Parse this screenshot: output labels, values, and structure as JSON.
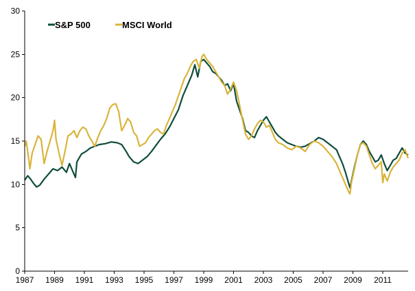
{
  "chart_data": {
    "type": "line",
    "title": "",
    "xlabel": "",
    "ylabel": "",
    "xlim": [
      1987,
      2012.7
    ],
    "ylim": [
      0,
      30
    ],
    "x_ticks": [
      1987,
      1989,
      1991,
      1993,
      1995,
      1997,
      1999,
      2001,
      2003,
      2005,
      2007,
      2009,
      2011
    ],
    "x_tick_labels": [
      "1987",
      "1989",
      "1991",
      "1993",
      "1995",
      "1997",
      "1999",
      "2001",
      "2003",
      "2005",
      "2007",
      "2009",
      "2011"
    ],
    "y_ticks": [
      0,
      5,
      10,
      15,
      20,
      25,
      30
    ],
    "y_tick_labels": [
      "0",
      "5",
      "10",
      "15",
      "20",
      "25",
      "30"
    ],
    "grid": false,
    "legend_position": "top-left",
    "series": [
      {
        "name": "S&P 500",
        "color": "#0d4d3a",
        "points": [
          [
            1987.0,
            10.5
          ],
          [
            1987.2,
            11.0
          ],
          [
            1987.4,
            10.6
          ],
          [
            1987.6,
            10.1
          ],
          [
            1987.8,
            9.7
          ],
          [
            1988.0,
            9.9
          ],
          [
            1988.3,
            10.6
          ],
          [
            1988.6,
            11.2
          ],
          [
            1988.9,
            11.8
          ],
          [
            1989.2,
            11.6
          ],
          [
            1989.5,
            12.0
          ],
          [
            1989.8,
            11.4
          ],
          [
            1990.0,
            12.4
          ],
          [
            1990.2,
            11.6
          ],
          [
            1990.4,
            10.8
          ],
          [
            1990.5,
            12.6
          ],
          [
            1990.8,
            13.5
          ],
          [
            1991.1,
            13.8
          ],
          [
            1991.4,
            14.2
          ],
          [
            1991.7,
            14.4
          ],
          [
            1992.0,
            14.6
          ],
          [
            1992.4,
            14.7
          ],
          [
            1992.8,
            14.9
          ],
          [
            1993.2,
            14.8
          ],
          [
            1993.5,
            14.6
          ],
          [
            1993.8,
            13.8
          ],
          [
            1994.0,
            13.2
          ],
          [
            1994.3,
            12.6
          ],
          [
            1994.6,
            12.4
          ],
          [
            1994.9,
            12.8
          ],
          [
            1995.2,
            13.2
          ],
          [
            1995.5,
            13.8
          ],
          [
            1995.8,
            14.5
          ],
          [
            1996.1,
            15.2
          ],
          [
            1996.4,
            15.8
          ],
          [
            1996.7,
            16.6
          ],
          [
            1997.0,
            17.6
          ],
          [
            1997.3,
            18.6
          ],
          [
            1997.6,
            20.2
          ],
          [
            1997.9,
            21.4
          ],
          [
            1998.2,
            22.6
          ],
          [
            1998.4,
            23.8
          ],
          [
            1998.6,
            22.4
          ],
          [
            1998.8,
            24.2
          ],
          [
            1999.0,
            24.4
          ],
          [
            1999.2,
            24.0
          ],
          [
            1999.4,
            23.6
          ],
          [
            1999.6,
            23.0
          ],
          [
            1999.8,
            22.8
          ],
          [
            2000.0,
            22.4
          ],
          [
            2000.2,
            22.0
          ],
          [
            2000.4,
            21.4
          ],
          [
            2000.6,
            21.6
          ],
          [
            2000.8,
            20.8
          ],
          [
            2001.0,
            21.6
          ],
          [
            2001.2,
            19.6
          ],
          [
            2001.4,
            18.6
          ],
          [
            2001.6,
            17.6
          ],
          [
            2001.8,
            16.2
          ],
          [
            2002.0,
            16.0
          ],
          [
            2002.2,
            15.6
          ],
          [
            2002.4,
            15.4
          ],
          [
            2002.6,
            16.2
          ],
          [
            2002.8,
            16.8
          ],
          [
            2003.0,
            17.4
          ],
          [
            2003.2,
            17.8
          ],
          [
            2003.4,
            17.2
          ],
          [
            2003.6,
            16.6
          ],
          [
            2003.8,
            16.0
          ],
          [
            2004.0,
            15.6
          ],
          [
            2004.3,
            15.2
          ],
          [
            2004.6,
            14.8
          ],
          [
            2004.9,
            14.6
          ],
          [
            2005.2,
            14.4
          ],
          [
            2005.5,
            14.3
          ],
          [
            2005.8,
            14.4
          ],
          [
            2006.1,
            14.7
          ],
          [
            2006.4,
            15.0
          ],
          [
            2006.7,
            15.4
          ],
          [
            2007.0,
            15.2
          ],
          [
            2007.3,
            14.8
          ],
          [
            2007.6,
            14.4
          ],
          [
            2007.9,
            14.0
          ],
          [
            2008.1,
            13.2
          ],
          [
            2008.3,
            12.4
          ],
          [
            2008.5,
            11.4
          ],
          [
            2008.7,
            10.2
          ],
          [
            2008.8,
            9.6
          ],
          [
            2008.9,
            10.4
          ],
          [
            2009.1,
            12.0
          ],
          [
            2009.3,
            13.4
          ],
          [
            2009.5,
            14.6
          ],
          [
            2009.7,
            15.0
          ],
          [
            2009.9,
            14.6
          ],
          [
            2010.1,
            13.8
          ],
          [
            2010.3,
            13.2
          ],
          [
            2010.5,
            12.6
          ],
          [
            2010.7,
            12.8
          ],
          [
            2010.9,
            13.4
          ],
          [
            2011.1,
            12.4
          ],
          [
            2011.3,
            11.6
          ],
          [
            2011.5,
            12.2
          ],
          [
            2011.7,
            12.8
          ],
          [
            2011.9,
            13.0
          ],
          [
            2012.1,
            13.6
          ],
          [
            2012.3,
            14.2
          ],
          [
            2012.5,
            13.6
          ],
          [
            2012.7,
            13.4
          ]
        ]
      },
      {
        "name": "MSCI World",
        "color": "#d9b43b",
        "points": [
          [
            1987.0,
            14.4
          ],
          [
            1987.1,
            15.0
          ],
          [
            1987.25,
            13.2
          ],
          [
            1987.35,
            11.8
          ],
          [
            1987.5,
            13.6
          ],
          [
            1987.7,
            14.6
          ],
          [
            1987.9,
            15.6
          ],
          [
            1988.1,
            15.2
          ],
          [
            1988.3,
            12.4
          ],
          [
            1988.5,
            13.8
          ],
          [
            1988.7,
            15.0
          ],
          [
            1988.9,
            16.2
          ],
          [
            1989.0,
            17.4
          ],
          [
            1989.1,
            15.2
          ],
          [
            1989.3,
            13.6
          ],
          [
            1989.5,
            12.2
          ],
          [
            1989.7,
            13.8
          ],
          [
            1989.9,
            15.6
          ],
          [
            1990.1,
            15.8
          ],
          [
            1990.3,
            16.2
          ],
          [
            1990.5,
            15.4
          ],
          [
            1990.7,
            16.2
          ],
          [
            1990.9,
            16.6
          ],
          [
            1991.1,
            16.4
          ],
          [
            1991.3,
            15.6
          ],
          [
            1991.5,
            15.0
          ],
          [
            1991.7,
            14.4
          ],
          [
            1991.9,
            15.4
          ],
          [
            1992.1,
            16.2
          ],
          [
            1992.3,
            16.8
          ],
          [
            1992.5,
            17.6
          ],
          [
            1992.7,
            18.8
          ],
          [
            1992.9,
            19.2
          ],
          [
            1993.1,
            19.3
          ],
          [
            1993.3,
            18.4
          ],
          [
            1993.5,
            16.2
          ],
          [
            1993.7,
            16.8
          ],
          [
            1993.9,
            17.6
          ],
          [
            1994.1,
            17.2
          ],
          [
            1994.3,
            16.0
          ],
          [
            1994.5,
            15.6
          ],
          [
            1994.7,
            14.4
          ],
          [
            1994.9,
            14.6
          ],
          [
            1995.1,
            14.8
          ],
          [
            1995.3,
            15.4
          ],
          [
            1995.5,
            15.8
          ],
          [
            1995.7,
            16.2
          ],
          [
            1995.9,
            16.4
          ],
          [
            1996.1,
            16.0
          ],
          [
            1996.3,
            15.8
          ],
          [
            1996.5,
            16.8
          ],
          [
            1996.7,
            17.6
          ],
          [
            1996.9,
            18.4
          ],
          [
            1997.1,
            19.2
          ],
          [
            1997.3,
            20.2
          ],
          [
            1997.5,
            21.2
          ],
          [
            1997.7,
            22.2
          ],
          [
            1997.9,
            22.8
          ],
          [
            1998.1,
            23.6
          ],
          [
            1998.3,
            24.2
          ],
          [
            1998.5,
            24.4
          ],
          [
            1998.7,
            23.4
          ],
          [
            1998.9,
            24.8
          ],
          [
            1999.0,
            25.0
          ],
          [
            1999.2,
            24.4
          ],
          [
            1999.4,
            24.0
          ],
          [
            1999.6,
            23.6
          ],
          [
            1999.8,
            23.0
          ],
          [
            2000.0,
            22.4
          ],
          [
            2000.2,
            21.8
          ],
          [
            2000.4,
            21.4
          ],
          [
            2000.6,
            20.4
          ],
          [
            2000.8,
            21.0
          ],
          [
            2001.0,
            21.8
          ],
          [
            2001.2,
            20.8
          ],
          [
            2001.4,
            19.2
          ],
          [
            2001.6,
            17.4
          ],
          [
            2001.8,
            15.8
          ],
          [
            2002.0,
            15.2
          ],
          [
            2002.2,
            15.6
          ],
          [
            2002.4,
            16.4
          ],
          [
            2002.6,
            17.0
          ],
          [
            2002.8,
            17.4
          ],
          [
            2003.0,
            17.2
          ],
          [
            2003.2,
            16.6
          ],
          [
            2003.4,
            16.8
          ],
          [
            2003.6,
            16.0
          ],
          [
            2003.8,
            15.2
          ],
          [
            2004.0,
            14.8
          ],
          [
            2004.3,
            14.6
          ],
          [
            2004.6,
            14.2
          ],
          [
            2004.9,
            14.0
          ],
          [
            2005.2,
            14.4
          ],
          [
            2005.5,
            14.2
          ],
          [
            2005.8,
            13.8
          ],
          [
            2006.1,
            14.6
          ],
          [
            2006.4,
            15.0
          ],
          [
            2006.7,
            14.8
          ],
          [
            2007.0,
            14.4
          ],
          [
            2007.3,
            13.8
          ],
          [
            2007.6,
            13.2
          ],
          [
            2007.9,
            12.4
          ],
          [
            2008.1,
            11.6
          ],
          [
            2008.3,
            10.8
          ],
          [
            2008.5,
            10.0
          ],
          [
            2008.7,
            9.2
          ],
          [
            2008.8,
            8.9
          ],
          [
            2008.9,
            10.2
          ],
          [
            2009.1,
            11.8
          ],
          [
            2009.3,
            13.4
          ],
          [
            2009.5,
            14.6
          ],
          [
            2009.7,
            14.8
          ],
          [
            2009.9,
            14.4
          ],
          [
            2010.1,
            13.4
          ],
          [
            2010.3,
            12.4
          ],
          [
            2010.5,
            11.8
          ],
          [
            2010.7,
            12.2
          ],
          [
            2010.9,
            12.6
          ],
          [
            2011.0,
            10.2
          ],
          [
            2011.1,
            11.2
          ],
          [
            2011.3,
            10.4
          ],
          [
            2011.5,
            11.4
          ],
          [
            2011.7,
            12.0
          ],
          [
            2011.9,
            12.4
          ],
          [
            2012.1,
            12.8
          ],
          [
            2012.3,
            13.6
          ],
          [
            2012.5,
            14.0
          ],
          [
            2012.7,
            13.0
          ]
        ]
      }
    ]
  }
}
